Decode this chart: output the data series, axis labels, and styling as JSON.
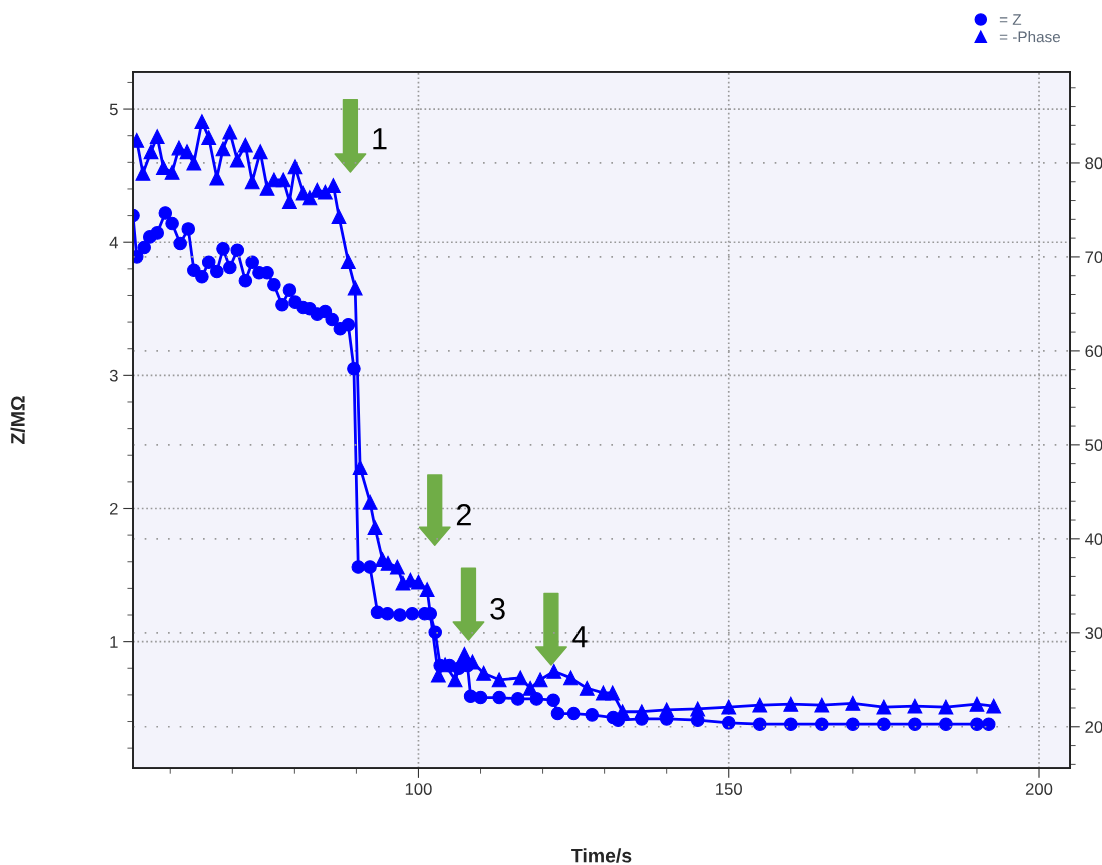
{
  "chart_data": {
    "type": "line",
    "xlabel": "Time/s",
    "ylabel": "Z/MΩ",
    "xlim": [
      54,
      205
    ],
    "xticks": [
      100,
      150,
      200
    ],
    "ylim": [
      0.05,
      5.28
    ],
    "yticks": [
      1,
      2,
      3,
      4,
      5
    ],
    "y2lim": [
      15.6,
      89.7
    ],
    "y2ticks": [
      20,
      30,
      40,
      50,
      60,
      70,
      80
    ],
    "grid": true,
    "legend": "top right",
    "line_style": "solid",
    "series": [
      {
        "name": "= Z",
        "color": "#0000ff",
        "marker": "circle",
        "x": [
          54,
          54.6,
          55.8,
          56.7,
          57.9,
          59.2,
          60.3,
          61.6,
          62.9,
          63.8,
          65.1,
          66.2,
          67.5,
          68.5,
          69.6,
          70.8,
          72.1,
          73.2,
          74.3,
          75.6,
          76.7,
          78.0,
          79.2,
          80.1,
          81.4,
          82.5,
          83.7,
          85.0,
          86.1,
          87.4,
          88.7,
          89.6,
          90.3,
          92.2,
          93.4,
          95,
          97,
          99,
          101,
          101.9,
          102.7,
          103.5,
          105,
          106.5,
          107.9,
          108.4,
          110,
          113,
          116,
          119,
          121.7,
          122.4,
          125,
          128,
          131.4,
          132.2,
          136,
          140,
          145,
          150,
          155,
          160,
          165,
          170,
          175,
          180,
          185,
          190,
          191.9
        ],
        "values": [
          4.2,
          3.89,
          3.96,
          4.04,
          4.07,
          4.22,
          4.14,
          3.99,
          4.1,
          3.79,
          3.74,
          3.85,
          3.78,
          3.95,
          3.81,
          3.94,
          3.71,
          3.85,
          3.77,
          3.77,
          3.68,
          3.53,
          3.64,
          3.55,
          3.51,
          3.5,
          3.46,
          3.48,
          3.42,
          3.35,
          3.38,
          3.05,
          1.56,
          1.56,
          1.22,
          1.21,
          1.2,
          1.21,
          1.21,
          1.21,
          1.07,
          0.82,
          0.82,
          0.8,
          0.82,
          0.59,
          0.58,
          0.58,
          0.57,
          0.57,
          0.56,
          0.46,
          0.46,
          0.45,
          0.43,
          0.41,
          0.42,
          0.42,
          0.41,
          0.39,
          0.38,
          0.38,
          0.38,
          0.38,
          0.38,
          0.38,
          0.38,
          0.38,
          0.38
        ]
      },
      {
        "name": "= -Phase",
        "color": "#0000ff",
        "marker": "triangle",
        "axis": "y2",
        "x": [
          54.6,
          55.6,
          56.9,
          57.9,
          58.9,
          60.3,
          61.4,
          62.7,
          63.8,
          65.1,
          66.2,
          67.5,
          68.5,
          69.6,
          70.8,
          72.1,
          73.2,
          74.5,
          75.6,
          76.7,
          78.2,
          79.2,
          80.1,
          81.4,
          82.5,
          83.7,
          85.0,
          86.3,
          87.2,
          88.7,
          89.8,
          90.6,
          92.2,
          93.0,
          94.2,
          95.1,
          96.6,
          97.5,
          98.7,
          100.0,
          101.4,
          103.2,
          104.3,
          105.9,
          107.4,
          108.7,
          110.5,
          113,
          116.4,
          118,
          119.6,
          121.8,
          124.5,
          127.2,
          129.8,
          131.3,
          132.9,
          136,
          140,
          145,
          150,
          155,
          160,
          165,
          170,
          175,
          180,
          185,
          190,
          192.7
        ],
        "values": [
          82.4,
          78.9,
          81.2,
          82.8,
          79.5,
          79.0,
          81.6,
          81.2,
          80.0,
          84.4,
          82.7,
          78.4,
          81.5,
          83.3,
          80.3,
          81.9,
          78.0,
          81.2,
          77.3,
          78.2,
          78.2,
          75.9,
          79.6,
          76.8,
          76.3,
          77.1,
          76.9,
          77.6,
          74.3,
          69.5,
          66.7,
          47.6,
          43.9,
          41.2,
          37.8,
          37.4,
          37.0,
          35.3,
          35.6,
          35.4,
          34.6,
          25.5,
          26.6,
          25.0,
          27.7,
          26.9,
          25.7,
          25.0,
          25.2,
          24.1,
          25.0,
          25.9,
          25.2,
          24.1,
          23.6,
          23.6,
          21.6,
          21.6,
          21.8,
          21.9,
          22.1,
          22.3,
          22.4,
          22.3,
          22.5,
          22.1,
          22.2,
          22.1,
          22.4,
          22.2
        ]
      }
    ],
    "annotations": [
      "1",
      "2",
      "3",
      "4"
    ]
  }
}
